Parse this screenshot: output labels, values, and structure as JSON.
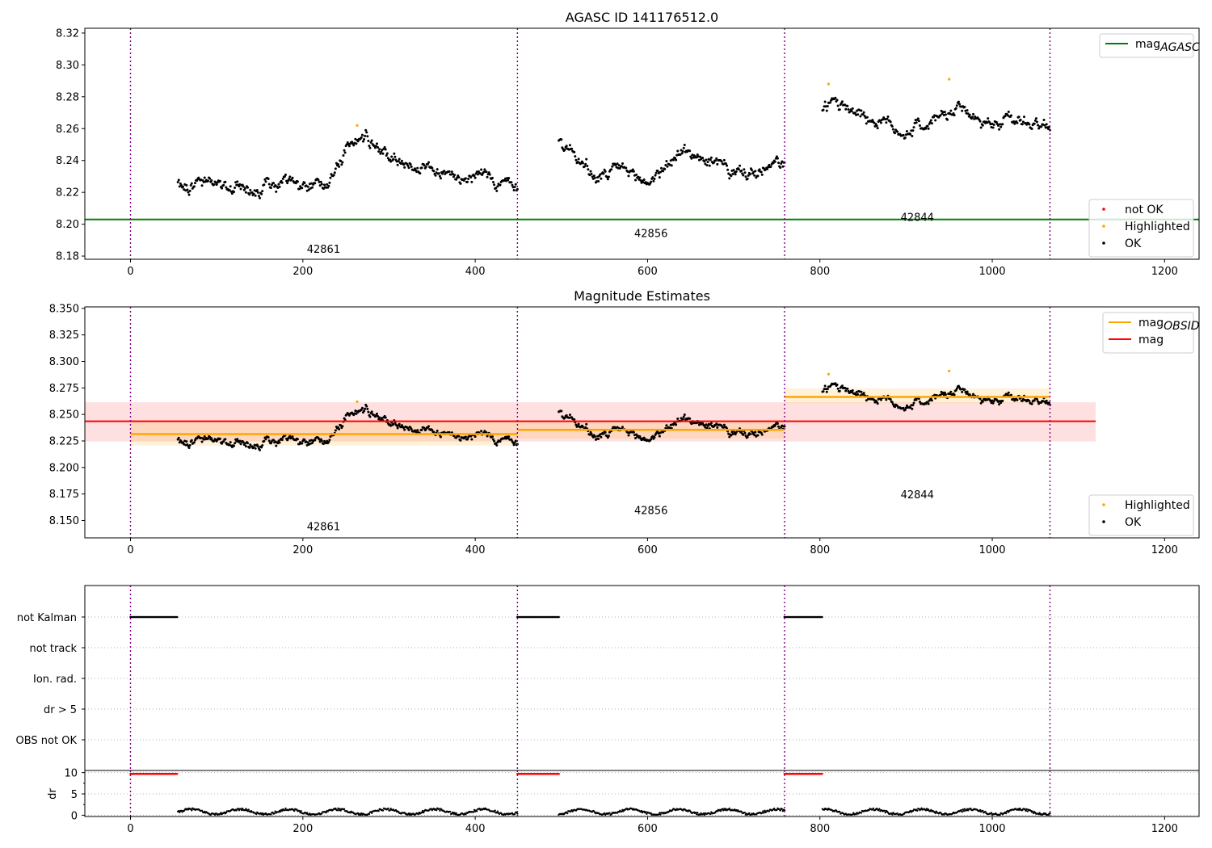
{
  "chart_data": [
    {
      "type": "scatter",
      "title": "AGASC ID 141176512.0",
      "xlim": [
        -53,
        1240
      ],
      "ylim": [
        8.178,
        8.323
      ],
      "xticks": [
        0,
        200,
        400,
        600,
        800,
        1000,
        1200
      ],
      "yticks": [
        8.18,
        8.2,
        8.22,
        8.24,
        8.26,
        8.28,
        8.3,
        8.32
      ],
      "ytick_decimals": 2,
      "obs_boundaries": [
        0,
        449,
        759,
        1067
      ],
      "obs_labels": [
        {
          "text": "42861",
          "x": 224,
          "y": 8.184
        },
        {
          "text": "42856",
          "x": 604,
          "y": 8.194
        },
        {
          "text": "42844",
          "x": 913,
          "y": 8.204
        }
      ],
      "hlines": [
        {
          "name": "mag_AGASC",
          "y": 8.203,
          "xmin": -53,
          "xmax": 1240,
          "color": "#008000"
        }
      ],
      "series_segments": [
        {
          "x0": 55,
          "x1": 449,
          "dx": 1,
          "anchors": [
            [
              55,
              8.225
            ],
            [
              100,
              8.224
            ],
            [
              150,
              8.222
            ],
            [
              180,
              8.225
            ],
            [
              200,
              8.22
            ],
            [
              225,
              8.225
            ],
            [
              250,
              8.248
            ],
            [
              275,
              8.255
            ],
            [
              300,
              8.243
            ],
            [
              350,
              8.233
            ],
            [
              400,
              8.232
            ],
            [
              449,
              8.222
            ]
          ],
          "noise": 0.0055
        },
        {
          "x0": 497,
          "x1": 759,
          "dx": 1,
          "anchors": [
            [
              497,
              8.252
            ],
            [
              515,
              8.245
            ],
            [
              540,
              8.228
            ],
            [
              570,
              8.234
            ],
            [
              600,
              8.226
            ],
            [
              640,
              8.246
            ],
            [
              670,
              8.24
            ],
            [
              700,
              8.232
            ],
            [
              730,
              8.232
            ],
            [
              759,
              8.238
            ]
          ],
          "noise": 0.0055
        },
        {
          "x0": 803,
          "x1": 1067,
          "dx": 1,
          "anchors": [
            [
              803,
              8.272
            ],
            [
              830,
              8.276
            ],
            [
              860,
              8.266
            ],
            [
              900,
              8.258
            ],
            [
              930,
              8.264
            ],
            [
              960,
              8.272
            ],
            [
              990,
              8.262
            ],
            [
              1020,
              8.266
            ],
            [
              1067,
              8.262
            ]
          ],
          "noise": 0.0055
        }
      ],
      "highlighted_points": [
        [
          263,
          8.262
        ],
        [
          810,
          8.288
        ],
        [
          950,
          8.291
        ]
      ],
      "legend_top": [
        {
          "label": "mag",
          "sub": "AGASC",
          "kind": "line",
          "color": "#008000"
        }
      ],
      "legend_bottom": [
        {
          "label": "not OK",
          "kind": "dot",
          "color": "#ff0000"
        },
        {
          "label": "Highlighted",
          "kind": "dot",
          "color": "#ffa500"
        },
        {
          "label": "OK",
          "kind": "dot",
          "color": "#000000"
        }
      ]
    },
    {
      "type": "scatter",
      "title": "Magnitude Estimates",
      "xlim": [
        -53,
        1240
      ],
      "ylim": [
        8.1336,
        8.3514
      ],
      "xticks": [
        0,
        200,
        400,
        600,
        800,
        1000,
        1200
      ],
      "yticks": [
        8.15,
        8.175,
        8.2,
        8.225,
        8.25,
        8.275,
        8.3,
        8.325,
        8.35
      ],
      "ytick_decimals": 3,
      "obs_boundaries": [
        0,
        449,
        759,
        1067
      ],
      "obs_labels": [
        {
          "text": "42861",
          "x": 224,
          "y": 8.144
        },
        {
          "text": "42856",
          "x": 604,
          "y": 8.159
        },
        {
          "text": "42844",
          "x": 913,
          "y": 8.174
        }
      ],
      "mag_band": {
        "y": 8.2435,
        "lo": 8.2245,
        "hi": 8.2615,
        "xmin": -53,
        "xmax": 1120,
        "color": "#ff0000"
      },
      "obsid_mags": [
        {
          "x0": 0,
          "x1": 449,
          "y": 8.2315,
          "lo": 8.2205,
          "hi": 8.2435
        },
        {
          "x0": 449,
          "x1": 759,
          "y": 8.2355,
          "lo": 8.2275,
          "hi": 8.2435
        },
        {
          "x0": 759,
          "x1": 1067,
          "y": 8.2665,
          "lo": 8.2605,
          "hi": 8.2745
        }
      ],
      "legend_top": [
        {
          "label": "mag",
          "sub": "OBSID",
          "kind": "line",
          "color": "#ffa500"
        },
        {
          "label": "mag",
          "kind": "line",
          "color": "#ff0000"
        }
      ],
      "legend_bottom": [
        {
          "label": "Highlighted",
          "kind": "dot",
          "color": "#ffa500"
        },
        {
          "label": "OK",
          "kind": "dot",
          "color": "#000000"
        }
      ]
    },
    {
      "type": "scatter",
      "title": "",
      "xlim": [
        -53,
        1240
      ],
      "xticks": [
        0,
        200,
        400,
        600,
        800,
        1000,
        1200
      ],
      "flag_categories": [
        "not Kalman",
        "not track",
        "Ion. rad.",
        "dr > 5",
        "OBS not OK"
      ],
      "flag_points": [
        {
          "category": "not Kalman",
          "ranges": [
            [
              0,
              55
            ],
            [
              449,
              497
            ],
            [
              759,
              803
            ]
          ]
        }
      ],
      "obs_boundaries": [
        0,
        449,
        759,
        1067
      ]
    },
    {
      "type": "scatter",
      "title": "",
      "ylabel": "dr",
      "xlim": [
        -53,
        1240
      ],
      "ylim": [
        -0.3,
        10.5
      ],
      "xticks": [
        0,
        200,
        400,
        600,
        800,
        1000,
        1200
      ],
      "yticks": [
        0,
        5,
        10
      ],
      "obs_boundaries": [
        0,
        449,
        759,
        1067
      ],
      "red_points": {
        "y": 9.7,
        "ranges": [
          [
            0,
            55
          ],
          [
            449,
            497
          ],
          [
            759,
            803
          ]
        ]
      },
      "black_ranges": [
        [
          55,
          449
        ],
        [
          497,
          759
        ],
        [
          803,
          1067
        ]
      ]
    }
  ]
}
